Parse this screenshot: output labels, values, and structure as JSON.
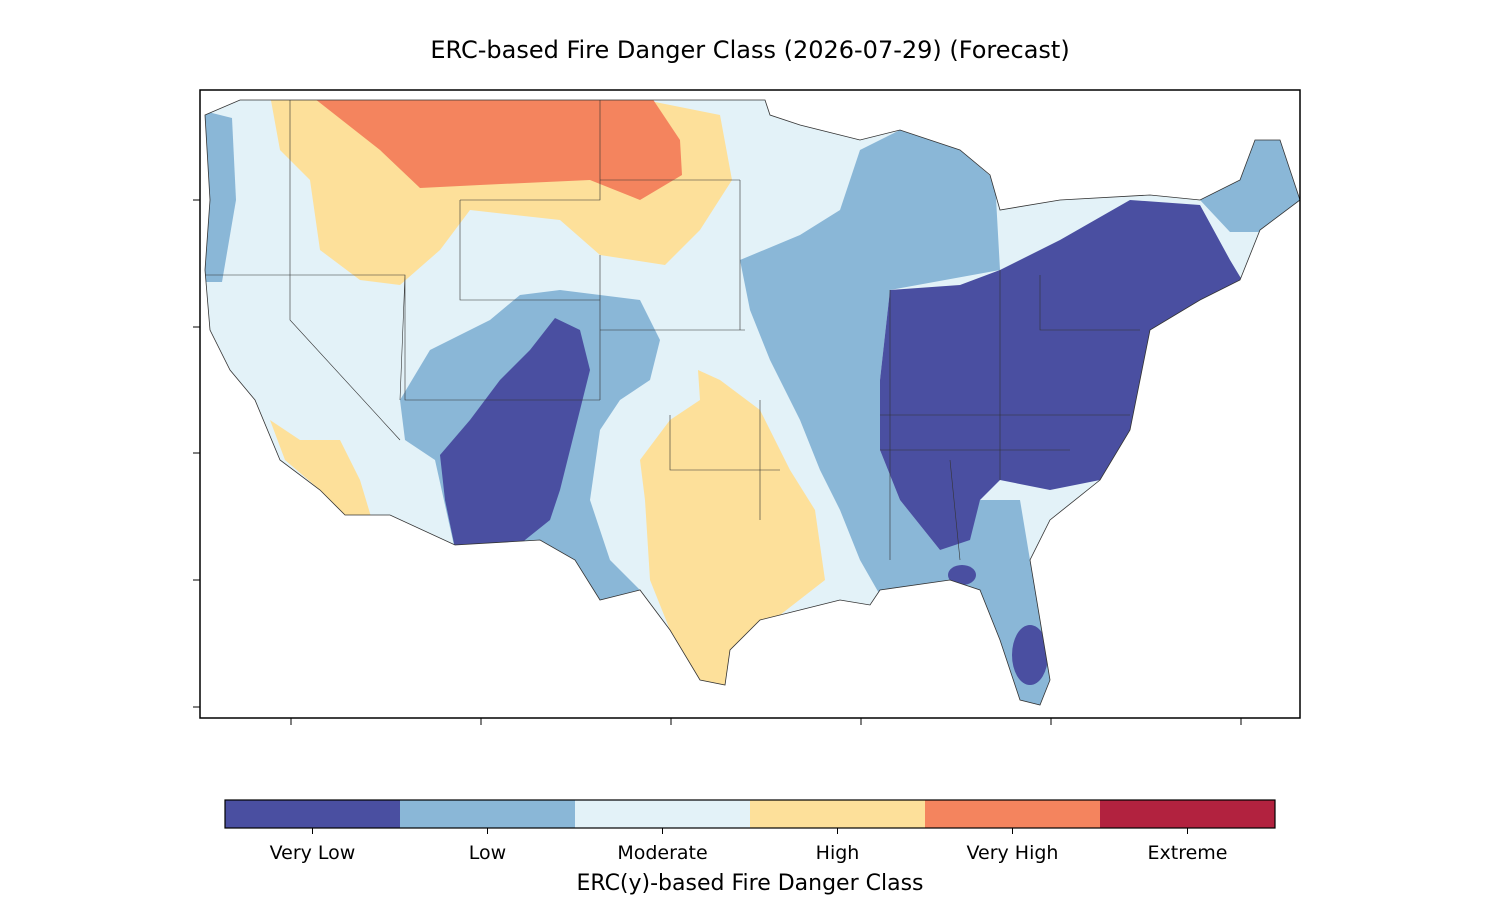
{
  "title": "ERC-based Fire Danger Class (2026-07-29) (Forecast)",
  "colorbar": {
    "label": "ERC(y)-based Fire Danger Class",
    "classes": [
      {
        "name": "Very Low",
        "color": "#4a4fa1"
      },
      {
        "name": "Low",
        "color": "#8ab7d7"
      },
      {
        "name": "Moderate",
        "color": "#e3f2f8"
      },
      {
        "name": "High",
        "color": "#fde09a"
      },
      {
        "name": "Very High",
        "color": "#f4845e"
      },
      {
        "name": "Extreme",
        "color": "#b2223f"
      }
    ]
  }
}
